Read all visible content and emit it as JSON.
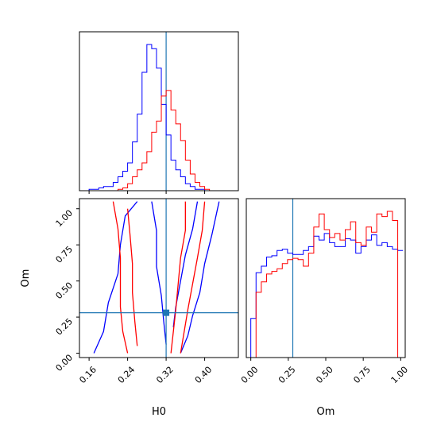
{
  "chart_data": [
    {
      "type": "histogram",
      "panel": "H0 marginal",
      "x_ticks": [
        0.16,
        0.24,
        0.32,
        0.4
      ],
      "x_range": [
        0.14,
        0.47
      ],
      "truth": 0.32,
      "bin_width": 0.01,
      "series": [
        {
          "color": "#0000ff",
          "bin_start": 0.14,
          "values": [
            0,
            0,
            1,
            1,
            2,
            3,
            3,
            6,
            10,
            14,
            20,
            35,
            55,
            85,
            105,
            102,
            88,
            62,
            40,
            22,
            15,
            10,
            5,
            3,
            1,
            1,
            0,
            0,
            0,
            0,
            0,
            0,
            0
          ]
        },
        {
          "color": "#ff0000",
          "bin_start": 0.14,
          "values": [
            0,
            0,
            0,
            0,
            0,
            0,
            0,
            0,
            1,
            2,
            5,
            10,
            15,
            20,
            28,
            42,
            50,
            68,
            72,
            58,
            48,
            36,
            22,
            12,
            6,
            3,
            1,
            0,
            0,
            0,
            0,
            0,
            0
          ]
        }
      ]
    },
    {
      "type": "contour",
      "panel": "H0 vs Om",
      "xlabel": "H0",
      "ylabel": "Om",
      "x_ticks": [
        0.16,
        0.24,
        0.32,
        0.4
      ],
      "y_ticks": [
        0.0,
        0.25,
        0.5,
        0.75,
        1.0
      ],
      "x_range": [
        0.14,
        0.47
      ],
      "y_range": [
        -0.03,
        1.07
      ],
      "truth": {
        "x": 0.32,
        "y": 0.28
      },
      "series": [
        {
          "color": "#0000ff",
          "contours": [
            [
              [
                0.17,
                0.0
              ],
              [
                0.19,
                0.15
              ],
              [
                0.2,
                0.35
              ],
              [
                0.22,
                0.55
              ],
              [
                0.225,
                0.75
              ],
              [
                0.235,
                0.95
              ],
              [
                0.26,
                1.05
              ]
            ],
            [
              [
                0.43,
                1.05
              ],
              [
                0.415,
                0.82
              ],
              [
                0.4,
                0.62
              ],
              [
                0.39,
                0.42
              ],
              [
                0.375,
                0.26
              ],
              [
                0.365,
                0.12
              ],
              [
                0.35,
                0.0
              ]
            ],
            [
              [
                0.29,
                1.05
              ],
              [
                0.3,
                0.85
              ],
              [
                0.3,
                0.6
              ],
              [
                0.31,
                0.4
              ],
              [
                0.315,
                0.22
              ],
              [
                0.32,
                0.06
              ]
            ],
            [
              [
                0.385,
                1.05
              ],
              [
                0.375,
                0.86
              ],
              [
                0.36,
                0.68
              ],
              [
                0.35,
                0.5
              ],
              [
                0.34,
                0.32
              ],
              [
                0.335,
                0.18
              ]
            ]
          ]
        },
        {
          "color": "#ff0000",
          "contours": [
            [
              [
                0.21,
                1.05
              ],
              [
                0.22,
                0.86
              ],
              [
                0.225,
                0.66
              ],
              [
                0.225,
                0.46
              ],
              [
                0.225,
                0.32
              ],
              [
                0.23,
                0.15
              ],
              [
                0.24,
                0.0
              ]
            ],
            [
              [
                0.36,
                1.05
              ],
              [
                0.36,
                0.85
              ],
              [
                0.35,
                0.66
              ],
              [
                0.345,
                0.48
              ],
              [
                0.34,
                0.3
              ],
              [
                0.335,
                0.15
              ],
              [
                0.33,
                0.0
              ]
            ],
            [
              [
                0.24,
                1.0
              ],
              [
                0.245,
                0.82
              ],
              [
                0.25,
                0.62
              ],
              [
                0.25,
                0.42
              ],
              [
                0.255,
                0.22
              ],
              [
                0.26,
                0.05
              ]
            ],
            [
              [
                0.4,
                1.05
              ],
              [
                0.395,
                0.85
              ],
              [
                0.385,
                0.66
              ],
              [
                0.375,
                0.48
              ],
              [
                0.365,
                0.3
              ],
              [
                0.355,
                0.1
              ],
              [
                0.35,
                0.0
              ]
            ]
          ]
        }
      ]
    },
    {
      "type": "histogram",
      "panel": "Om marginal",
      "xlabel": "Om",
      "x_ticks": [
        0.0,
        0.25,
        0.5,
        0.75,
        1.0
      ],
      "x_range": [
        -0.03,
        1.03
      ],
      "truth": 0.28,
      "bin_width": 0.035,
      "series": [
        {
          "color": "#0000ff",
          "bin_start": 0.0,
          "values": [
            30,
            65,
            70,
            77,
            78,
            82,
            83,
            80,
            79,
            79,
            82,
            85,
            93,
            90,
            95,
            88,
            85,
            85,
            91,
            90,
            80,
            85,
            90,
            94,
            86,
            88,
            85,
            83,
            82
          ]
        },
        {
          "color": "#ff0000",
          "bin_start": 0.0,
          "values": [
            0,
            50,
            58,
            64,
            66,
            68,
            72,
            75,
            76,
            75,
            70,
            80,
            100,
            110,
            98,
            92,
            95,
            90,
            98,
            104,
            88,
            86,
            100,
            96,
            110,
            108,
            112,
            105,
            0
          ]
        }
      ]
    }
  ]
}
